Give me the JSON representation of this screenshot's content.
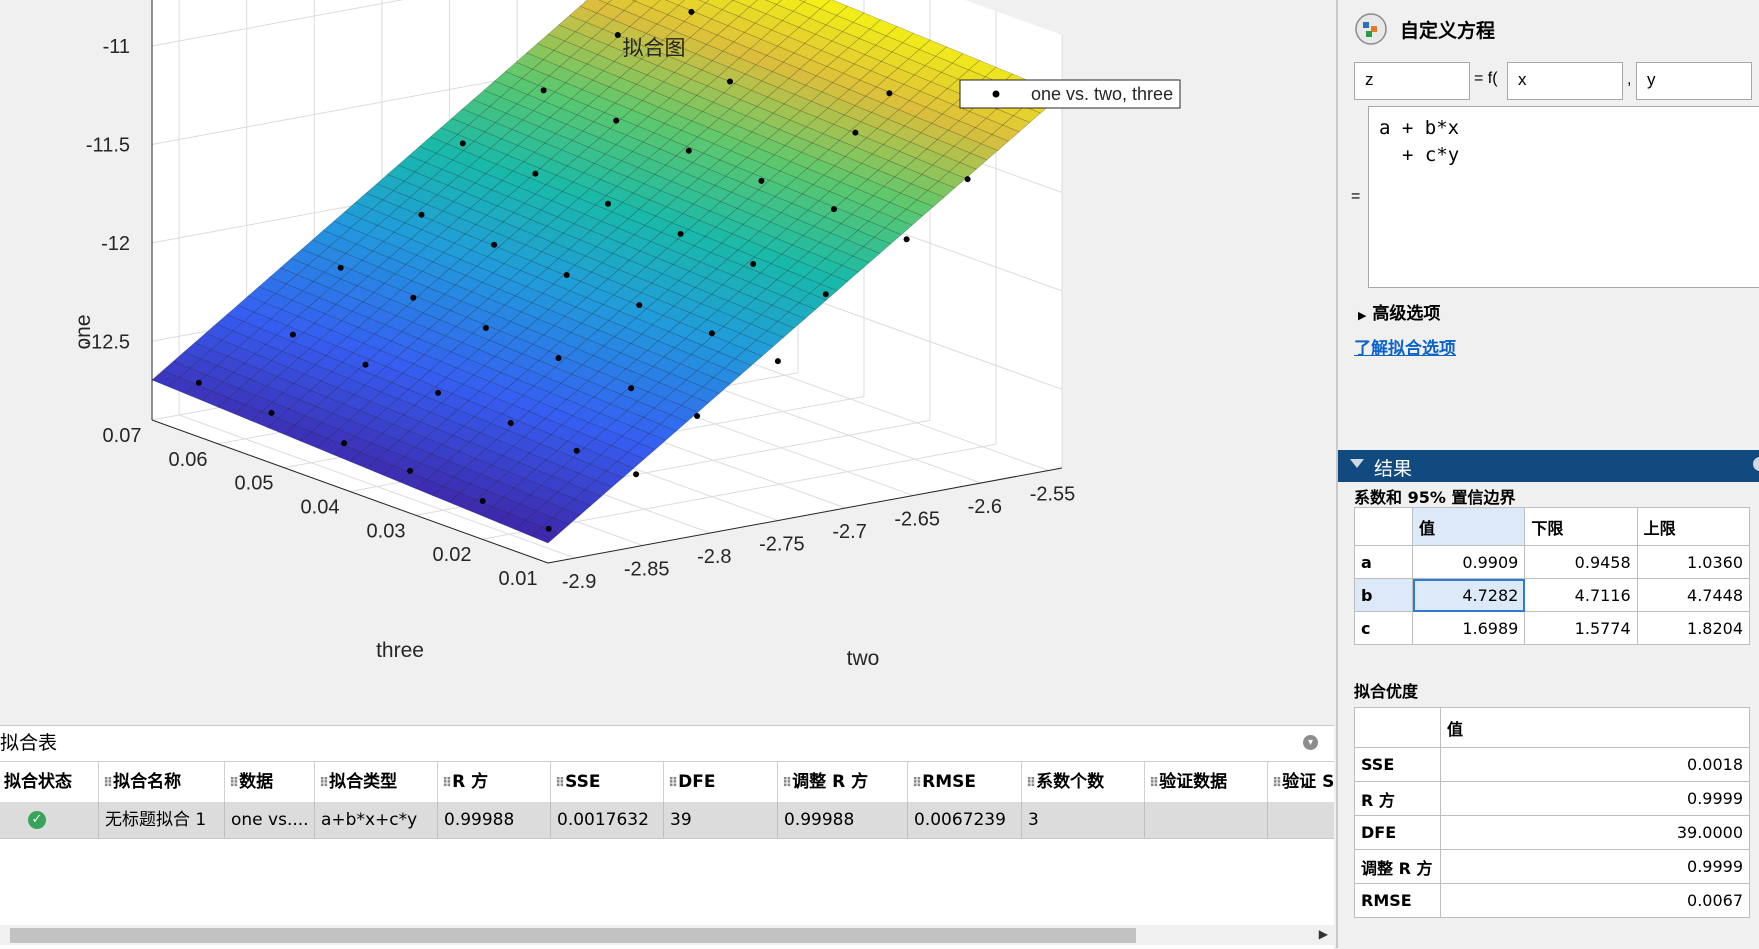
{
  "plot": {
    "title": "拟合图",
    "xlabel": "two",
    "ylabel": "three",
    "zlabel": "one",
    "legend": "one vs. two, three",
    "x_ticks": [
      "-2.9",
      "-2.85",
      "-2.8",
      "-2.75",
      "-2.7",
      "-2.65",
      "-2.6",
      "-2.55"
    ],
    "y_ticks": [
      "0.01",
      "0.02",
      "0.03",
      "0.04",
      "0.05",
      "0.06",
      "0.07"
    ],
    "z_ticks": [
      "-11",
      "-11.5",
      "-12",
      "-12.5"
    ]
  },
  "chart_data": {
    "type": "scatter",
    "title": "拟合图",
    "xlabel": "two",
    "ylabel": "three",
    "zlabel": "one",
    "legend": [
      "one vs. two, three"
    ],
    "xlim": [
      -2.92,
      -2.54
    ],
    "ylim": [
      0.01,
      0.07
    ],
    "zlim": [
      -12.9,
      -10.7
    ],
    "surface": "z = a + b*x + c*y",
    "coefficients": {
      "a": 0.9909,
      "b": 4.7282,
      "c": 1.6989
    },
    "points": [
      {
        "x": -2.9,
        "y": 0.067,
        "z": -12.7
      },
      {
        "x": -2.9,
        "y": 0.056,
        "z": -12.72
      },
      {
        "x": -2.9,
        "y": 0.045,
        "z": -12.74
      },
      {
        "x": -2.9,
        "y": 0.035,
        "z": -12.76
      },
      {
        "x": -2.9,
        "y": 0.024,
        "z": -12.78
      },
      {
        "x": -2.9,
        "y": 0.014,
        "z": -12.8
      },
      {
        "x": -2.85,
        "y": 0.063,
        "z": -12.47
      },
      {
        "x": -2.85,
        "y": 0.052,
        "z": -12.49
      },
      {
        "x": -2.85,
        "y": 0.041,
        "z": -12.5
      },
      {
        "x": -2.85,
        "y": 0.03,
        "z": -12.52
      },
      {
        "x": -2.85,
        "y": 0.02,
        "z": -12.54
      },
      {
        "x": -2.85,
        "y": 0.011,
        "z": -12.55
      },
      {
        "x": -2.8,
        "y": 0.066,
        "z": -12.23
      },
      {
        "x": -2.8,
        "y": 0.055,
        "z": -12.25
      },
      {
        "x": -2.8,
        "y": 0.044,
        "z": -12.27
      },
      {
        "x": -2.8,
        "y": 0.033,
        "z": -12.29
      },
      {
        "x": -2.8,
        "y": 0.022,
        "z": -12.31
      },
      {
        "x": -2.8,
        "y": 0.012,
        "z": -12.33
      },
      {
        "x": -2.75,
        "y": 0.064,
        "z": -12.0
      },
      {
        "x": -2.75,
        "y": 0.053,
        "z": -12.02
      },
      {
        "x": -2.75,
        "y": 0.042,
        "z": -12.04
      },
      {
        "x": -2.75,
        "y": 0.031,
        "z": -12.06
      },
      {
        "x": -2.75,
        "y": 0.02,
        "z": -12.07
      },
      {
        "x": -2.75,
        "y": 0.01,
        "z": -12.09
      },
      {
        "x": -2.7,
        "y": 0.068,
        "z": -11.75
      },
      {
        "x": -2.7,
        "y": 0.057,
        "z": -11.77
      },
      {
        "x": -2.7,
        "y": 0.046,
        "z": -11.79
      },
      {
        "x": -2.7,
        "y": 0.035,
        "z": -11.81
      },
      {
        "x": -2.7,
        "y": 0.024,
        "z": -11.83
      },
      {
        "x": -2.7,
        "y": 0.013,
        "z": -11.85
      },
      {
        "x": -2.65,
        "y": 0.066,
        "z": -11.52
      },
      {
        "x": -2.65,
        "y": 0.055,
        "z": -11.54
      },
      {
        "x": -2.65,
        "y": 0.044,
        "z": -11.56
      },
      {
        "x": -2.65,
        "y": 0.033,
        "z": -11.58
      },
      {
        "x": -2.65,
        "y": 0.022,
        "z": -11.59
      },
      {
        "x": -2.65,
        "y": 0.011,
        "z": -11.61
      },
      {
        "x": -2.6,
        "y": 0.065,
        "z": -11.29
      },
      {
        "x": -2.6,
        "y": 0.048,
        "z": -11.32
      },
      {
        "x": -2.6,
        "y": 0.029,
        "z": -11.35
      },
      {
        "x": -2.6,
        "y": 0.012,
        "z": -11.38
      },
      {
        "x": -2.57,
        "y": 0.06,
        "z": -11.15
      },
      {
        "x": -2.57,
        "y": 0.03,
        "z": -11.2
      }
    ]
  },
  "fit_table": {
    "title": "拟合表",
    "columns": [
      "拟合状态",
      "拟合名称",
      "数据",
      "拟合类型",
      "R 方",
      "SSE",
      "DFE",
      "调整 R 方",
      "RMSE",
      "系数个数",
      "验证数据",
      "验证 S"
    ],
    "row": {
      "status_icon": "check-circle-icon",
      "name": "无标题拟合 1",
      "data": "one vs....",
      "type": "a+b*x+c*y",
      "r2": "0.99988",
      "sse": "0.0017632",
      "dfe": "39",
      "adj_r2": "0.99988",
      "rmse": "0.0067239",
      "n_coef": "3",
      "validation": "",
      "validation_s": ""
    }
  },
  "equation_panel": {
    "title": "自定义方程",
    "dependent": "z",
    "f_label": "= f(",
    "comma": ",",
    "var1": "x",
    "var2": "y",
    "equals": "=",
    "expr_line1": "a + b*x",
    "expr_line2": "+ c*y",
    "advanced": "高级选项",
    "learn_link": "了解拟合选项"
  },
  "results": {
    "title": "结果",
    "coef_caption": "系数和 95% 置信边界",
    "coef_headers": [
      "值",
      "下限",
      "上限"
    ],
    "coefficients": [
      {
        "name": "a",
        "value": "0.9909",
        "lower": "0.9458",
        "upper": "1.0360"
      },
      {
        "name": "b",
        "value": "4.7282",
        "lower": "4.7116",
        "upper": "4.7448"
      },
      {
        "name": "c",
        "value": "1.6989",
        "lower": "1.5774",
        "upper": "1.8204"
      }
    ],
    "gof_caption": "拟合优度",
    "gof_header": "值",
    "gof": [
      {
        "name": "SSE",
        "value": "0.0018"
      },
      {
        "name": "R 方",
        "value": "0.9999"
      },
      {
        "name": "DFE",
        "value": "39.0000"
      },
      {
        "name": "调整 R 方",
        "value": "0.9999"
      },
      {
        "name": "RMSE",
        "value": "0.0067"
      }
    ]
  },
  "colors": {
    "accent": "#114a7e",
    "link": "#0b63c9",
    "status_ok": "#3aa35a",
    "selected": "#dbe9f9"
  }
}
